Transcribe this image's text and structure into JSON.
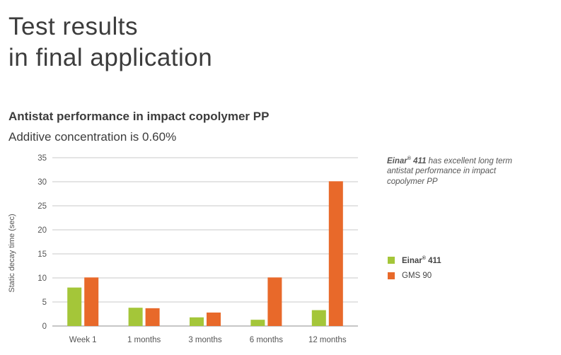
{
  "slide": {
    "title_line1": "Test results",
    "title_line2": "in final application"
  },
  "annotation": {
    "brand": "Einar",
    "reg": "®",
    "model": " 411",
    "text": " has excellent long term antistat performance in impact copolymer PP"
  },
  "chart_data": {
    "type": "bar",
    "title": "Antistat performance in impact copolymer PP",
    "subtitle": "Additive concentration is 0.60%",
    "categories": [
      "Week 1",
      "1 months",
      "3 months",
      "6 months",
      "12 months"
    ],
    "series": [
      {
        "name": "Einar® 411",
        "name_base": "Einar",
        "name_reg": "®",
        "name_suffix": " 411",
        "color": "#a4c639",
        "values": [
          8,
          3.8,
          1.8,
          1.3,
          3.3
        ]
      },
      {
        "name": "GMS 90",
        "color": "#e8692a",
        "values": [
          10.1,
          3.7,
          2.8,
          10.1,
          30.1
        ]
      }
    ],
    "xlabel": "",
    "ylabel": "Static decay time (sec)",
    "ylim": [
      0,
      35
    ],
    "yticks": [
      0,
      5,
      10,
      15,
      20,
      25,
      30,
      35
    ],
    "grid": true,
    "legend_position": "right"
  }
}
